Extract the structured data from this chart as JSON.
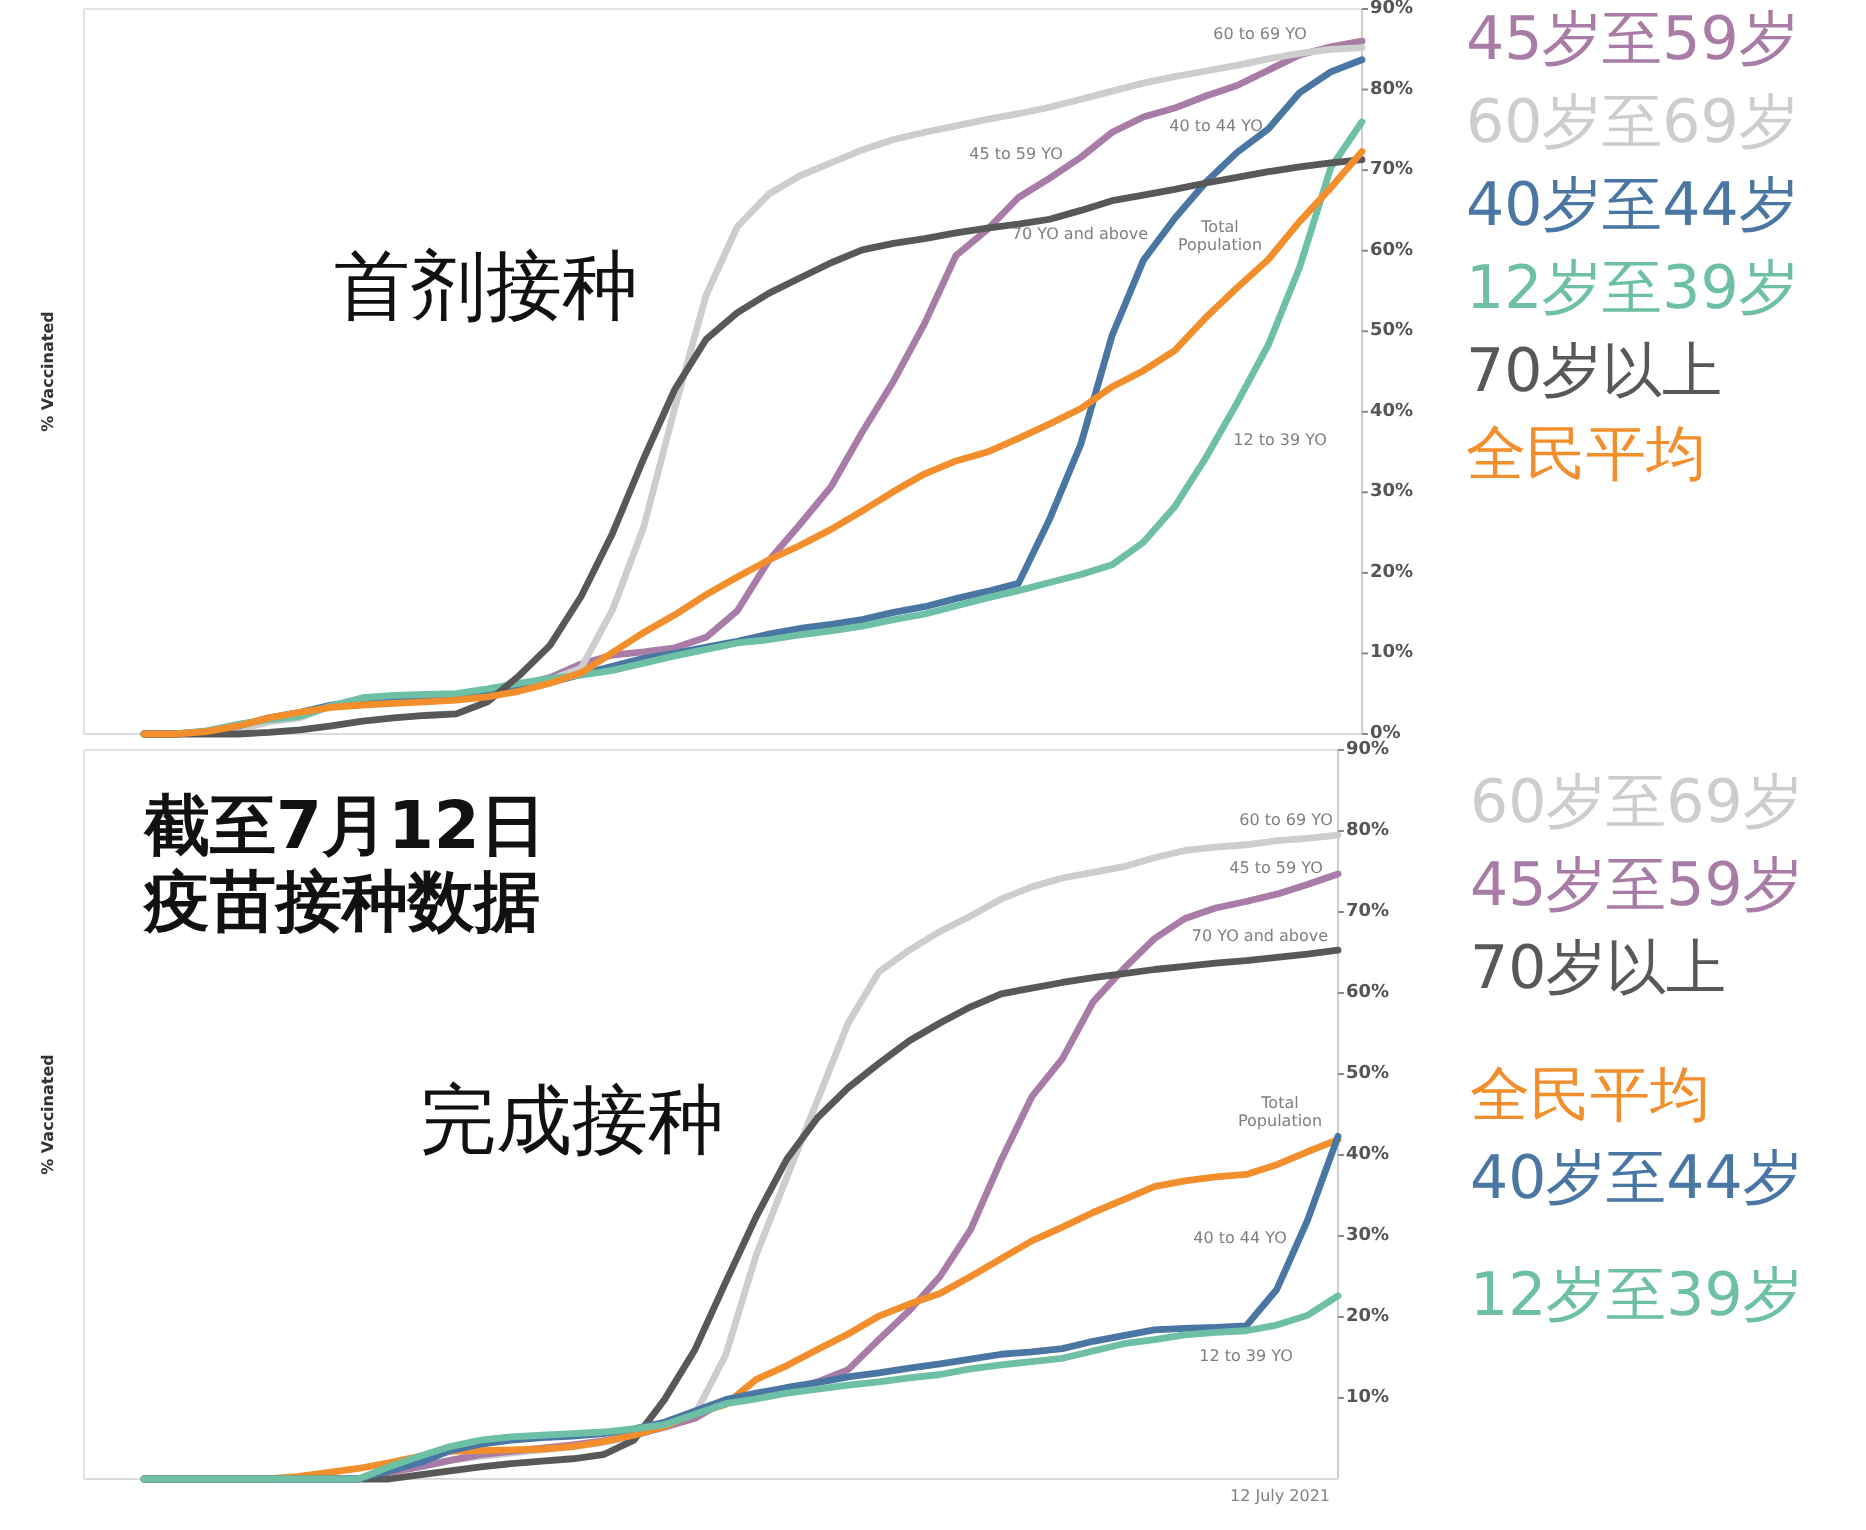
{
  "chart_data": [
    {
      "type": "line",
      "title": "首剂接种",
      "ylabel": "% Vaccinated",
      "legend": "right",
      "tick_labels": "y",
      "categories": [
        null,
        null,
        null,
        null,
        null,
        null,
        null,
        null,
        null,
        null,
        null,
        null,
        null,
        null,
        null,
        null,
        null,
        null,
        null,
        null,
        null,
        null,
        null,
        null,
        null,
        null,
        null,
        null,
        null,
        null,
        null,
        null,
        null,
        null,
        null,
        null,
        null,
        null,
        null,
        null
      ],
      "ylim": [
        0,
        90
      ],
      "yticks": [
        {
          "value": 0,
          "label": "0%"
        },
        {
          "value": 10,
          "label": "10%"
        },
        {
          "value": 20,
          "label": "20%"
        },
        {
          "value": 30,
          "label": "30%"
        },
        {
          "value": 40,
          "label": "40%"
        },
        {
          "value": 50,
          "label": "50%"
        },
        {
          "value": 60,
          "label": "60%"
        },
        {
          "value": 70,
          "label": "70%"
        },
        {
          "value": 80,
          "label": "80%"
        },
        {
          "value": 90,
          "label": "90%"
        }
      ],
      "series": [
        {
          "name": "45岁至59岁",
          "color": "#a87ca6",
          "values": [
            0,
            0,
            0.3,
            0.7,
            1.8,
            2.5,
            3.5,
            4,
            4.2,
            4.4,
            4.6,
            4.8,
            6,
            7,
            8.7,
            9.8,
            10.2,
            10.7,
            12,
            15.3,
            21.5,
            26,
            30.7,
            37.5,
            43.8,
            51,
            59.4,
            62.6,
            66.6,
            69,
            71.6,
            74.7,
            76.6,
            77.7,
            79.2,
            80.5,
            82.4,
            84.3,
            85.3,
            86
          ]
        },
        {
          "name": "60岁至69岁",
          "color": "#cdcdcd",
          "values": [
            0,
            0,
            0.3,
            0.5,
            1.5,
            2,
            3.5,
            4,
            4.3,
            4.5,
            4.7,
            4.8,
            5.5,
            6.7,
            8.2,
            15.4,
            25.7,
            40.5,
            54.5,
            63,
            67,
            69.3,
            70.9,
            72.5,
            73.8,
            74.7,
            75.5,
            76.3,
            77,
            77.8,
            78.8,
            79.8,
            80.8,
            81.6,
            82.3,
            83,
            83.8,
            84.5,
            85,
            85.2
          ]
        },
        {
          "name": "40岁至44岁",
          "color": "#4a76a3",
          "values": [
            0,
            0,
            0.3,
            1,
            2,
            2.7,
            3.6,
            4.1,
            4.4,
            4.6,
            4.8,
            5,
            5.6,
            6.4,
            7.4,
            8.4,
            9.4,
            10,
            10.8,
            11.5,
            12.4,
            13.1,
            13.6,
            14.2,
            15.1,
            15.8,
            16.8,
            17.7,
            18.7,
            26.7,
            36,
            49.5,
            58.8,
            64,
            68.5,
            72.2,
            75.1,
            79.6,
            82.2,
            83.7
          ]
        },
        {
          "name": "12岁至39岁",
          "color": "#6dbfa6",
          "values": [
            0,
            0,
            0.4,
            1.2,
            1.8,
            2.2,
            3.5,
            4.5,
            4.8,
            4.9,
            5,
            5.6,
            6.3,
            6.9,
            7.3,
            7.9,
            8.8,
            9.7,
            10.5,
            11.3,
            11.7,
            12.3,
            12.8,
            13.4,
            14.2,
            14.9,
            15.9,
            16.9,
            17.8,
            18.8,
            19.8,
            21,
            23.8,
            28.2,
            34.3,
            41.1,
            48.3,
            57.9,
            70.3,
            76
          ]
        },
        {
          "name": "70岁以上",
          "color": "#585858",
          "values": [
            0,
            0,
            0,
            0,
            0.2,
            0.5,
            1,
            1.6,
            2,
            2.3,
            2.5,
            4,
            7.2,
            11,
            17.1,
            24.9,
            34.2,
            42.8,
            49,
            52.3,
            54.7,
            56.6,
            58.5,
            60.1,
            60.9,
            61.5,
            62.2,
            62.8,
            63.3,
            63.9,
            65,
            66.2,
            66.9,
            67.6,
            68.4,
            69.1,
            69.8,
            70.4,
            70.9,
            71.3
          ]
        },
        {
          "name": "全民平均",
          "color": "#f28e2b",
          "values": [
            0,
            0,
            0.3,
            1,
            2,
            2.7,
            3.3,
            3.6,
            3.8,
            4,
            4.2,
            4.6,
            5.3,
            6.3,
            7.6,
            10.1,
            12.6,
            14.8,
            17.3,
            19.5,
            21.6,
            23.4,
            25.4,
            27.7,
            30.1,
            32.3,
            33.9,
            35,
            36.7,
            38.5,
            40.4,
            43.1,
            45.1,
            47.6,
            51.7,
            55.4,
            58.9,
            63.6,
            67.8,
            72.3
          ]
        }
      ],
      "annotations": [
        "60 to 69 YO",
        "45 to 59 YO",
        "40 to 44 YO",
        "70 YO and above",
        "Total Population",
        "12 to 39 YO"
      ]
    },
    {
      "type": "line",
      "title": "完成接种",
      "subtitle": "截至7月12日疫苗接种数据",
      "ylabel": "% Vaccinated",
      "legend": "right",
      "tick_labels": "y",
      "categories": [
        null,
        null,
        null,
        null,
        null,
        null,
        null,
        null,
        null,
        null,
        null,
        null,
        null,
        null,
        null,
        null,
        null,
        null,
        null,
        null,
        null,
        null,
        null,
        null,
        null,
        null,
        null,
        null,
        null,
        null,
        null,
        null,
        null,
        null,
        null,
        null,
        null,
        null,
        null,
        null
      ],
      "ylim": [
        0,
        90
      ],
      "yticks": [
        {
          "value": 10,
          "label": "10%"
        },
        {
          "value": 20,
          "label": "20%"
        },
        {
          "value": 30,
          "label": "30%"
        },
        {
          "value": 40,
          "label": "40%"
        },
        {
          "value": 50,
          "label": "50%"
        },
        {
          "value": 60,
          "label": "60%"
        },
        {
          "value": 70,
          "label": "70%"
        },
        {
          "value": 80,
          "label": "80%"
        },
        {
          "value": 90,
          "label": "90%"
        }
      ],
      "series": [
        {
          "name": "60岁至69岁",
          "color": "#cdcdcd",
          "values": [
            0,
            0,
            0,
            0,
            0,
            0,
            0,
            0,
            0.8,
            1.5,
            2.3,
            2.8,
            3.2,
            3.6,
            4,
            4.5,
            5.3,
            6.5,
            8,
            15.3,
            27.7,
            37.3,
            46.8,
            56.3,
            62.6,
            65.3,
            67.6,
            69.5,
            71.6,
            73.1,
            74.2,
            74.9,
            75.6,
            76.7,
            77.6,
            78,
            78.3,
            78.8,
            79.1,
            79.5
          ]
        },
        {
          "name": "45岁至59岁",
          "color": "#a87ca6",
          "values": [
            0,
            0,
            0,
            0,
            0,
            0,
            0,
            0,
            0.8,
            1.5,
            2.3,
            3,
            3.4,
            3.8,
            4.2,
            4.7,
            5.4,
            6.4,
            7.5,
            9.7,
            10.4,
            10.9,
            12,
            13.5,
            17.2,
            20.8,
            25,
            30.8,
            39.4,
            47.2,
            51.9,
            58.9,
            63,
            66.7,
            69.2,
            70.5,
            71.3,
            72.2,
            73.4,
            74.7
          ]
        },
        {
          "name": "70岁以上",
          "color": "#585858",
          "values": [
            0,
            0,
            0,
            0,
            0,
            0,
            0,
            0,
            0,
            0.5,
            1,
            1.5,
            1.9,
            2.2,
            2.5,
            3,
            4.8,
            9.8,
            16,
            24.3,
            32.4,
            39.5,
            44.6,
            48.3,
            51.3,
            54.1,
            56.3,
            58.3,
            59.9,
            60.6,
            61.3,
            61.9,
            62.4,
            62.9,
            63.3,
            63.7,
            64,
            64.4,
            64.8,
            65.3
          ]
        },
        {
          "name": "全民平均",
          "color": "#f28e2b",
          "values": [
            null,
            null,
            null,
            0,
            0,
            0.3,
            0.8,
            1.3,
            2,
            2.8,
            3.4,
            3.5,
            3.6,
            3.7,
            4,
            4.6,
            5.4,
            6.5,
            8.1,
            9.2,
            12.3,
            14,
            16,
            17.9,
            20.1,
            21.6,
            22.9,
            25,
            27.2,
            29.4,
            31.1,
            32.9,
            34.5,
            36.1,
            36.8,
            37.3,
            37.6,
            38.8,
            40.4,
            41.9
          ]
        },
        {
          "name": "40岁至44岁",
          "color": "#4a76a3",
          "values": [
            null,
            null,
            null,
            0,
            0,
            0,
            0,
            0,
            1,
            2,
            3.5,
            4.3,
            4.8,
            5.1,
            5.3,
            5.6,
            6.2,
            7,
            8.4,
            9.8,
            10.6,
            11.3,
            11.9,
            12.6,
            13.1,
            13.7,
            14.2,
            14.8,
            15.4,
            15.7,
            16.1,
            17,
            17.7,
            18.4,
            18.6,
            18.7,
            18.9,
            23.4,
            31.9,
            42.3
          ]
        },
        {
          "name": "12岁至39岁",
          "color": "#6dbfa6",
          "values": [
            0,
            0,
            0,
            0,
            0,
            0,
            0,
            0,
            1.5,
            2.8,
            4,
            4.8,
            5.2,
            5.4,
            5.6,
            5.8,
            6.2,
            6.7,
            8,
            9.3,
            9.9,
            10.6,
            11.1,
            11.6,
            12,
            12.5,
            12.9,
            13.6,
            14.1,
            14.5,
            14.9,
            15.8,
            16.7,
            17.2,
            17.8,
            18.1,
            18.3,
            19,
            20.2,
            22.6
          ]
        }
      ],
      "annotations": [
        "60 to 69 YO",
        "45 to 59 YO",
        "70 YO and above",
        "Total Population",
        "40 to 44 YO",
        "12 to 39 YO",
        "12 July 2021"
      ]
    }
  ]
}
